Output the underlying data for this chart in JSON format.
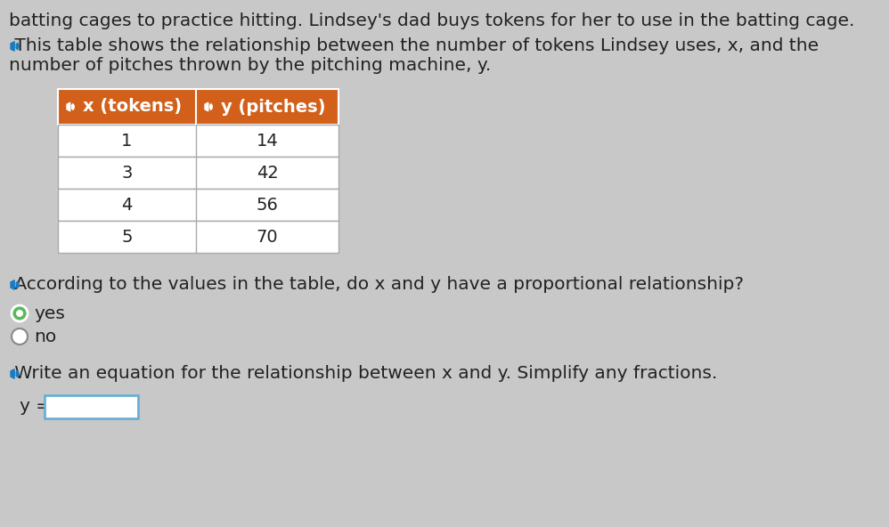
{
  "background_color": "#c8c8c8",
  "top_text": "batting cages to practice hitting. Lindsey's dad buys tokens for her to use in the batting cage.",
  "paragraph_line1": " This table shows the relationship between the number of tokens Lindsey uses, x, and the",
  "paragraph_line2": "number of pitches thrown by the pitching machine, y.",
  "table_header": [
    "x (tokens)",
    "y (pitches)"
  ],
  "table_header_color": "#d2601a",
  "table_data": [
    [
      1,
      14
    ],
    [
      3,
      42
    ],
    [
      4,
      56
    ],
    [
      5,
      70
    ]
  ],
  "table_border_color": "#aaaaaa",
  "question_text": " According to the values in the table, do x and y have a proportional relationship?",
  "yes_text": "yes",
  "no_text": "no",
  "equation_label": " Write an equation for the relationship between x and y. Simplify any fractions.",
  "y_eq_label": "y =",
  "radio_selected_color": "#5cb85c",
  "speaker_color": "#1a7bbf",
  "text_color": "#222222",
  "font_size_body": 14.5,
  "font_size_table": 14,
  "input_box_color": "#6ab0d4"
}
